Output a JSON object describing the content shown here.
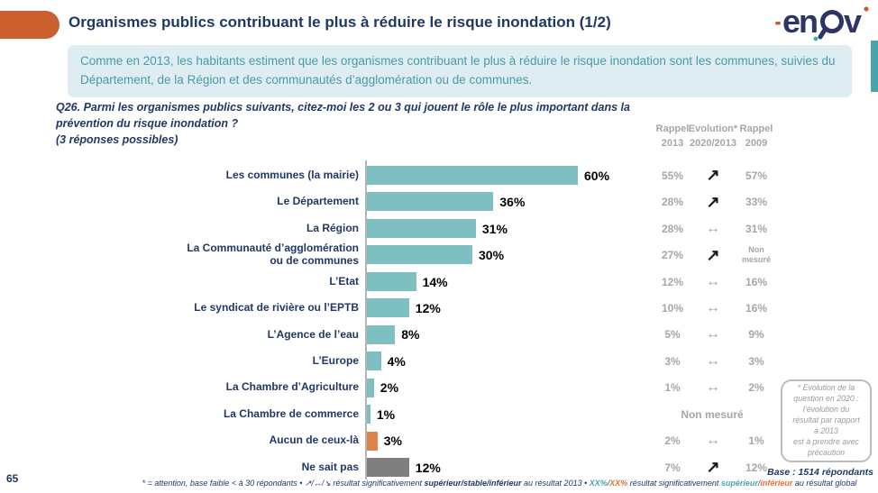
{
  "page_number": "65",
  "header": {
    "title": "Organismes publics contribuant le plus à réduire le risque inondation (1/2)",
    "logo_name": "enov"
  },
  "summary": {
    "text": "Comme en 2013, les habitants estiment que les organismes contribuant le plus à réduire le risque inondation sont les communes, suivies du Département, de la Région et des communautés d’agglomération ou de communes."
  },
  "question": {
    "line1": "Q26. Parmi les organismes publics suivants, citez-moi les 2 ou 3 qui jouent le rôle le plus important dans la prévention du risque inondation ?",
    "line2": "(3 réponses possibles)"
  },
  "columns": [
    {
      "line1": "Rappel",
      "line2": "2013"
    },
    {
      "line1": "Evolution*",
      "line2": "2020/2013"
    },
    {
      "line1": "Rappel",
      "line2": "2009"
    }
  ],
  "evolution_glyphs": {
    "up": "↗",
    "stable": "↔"
  },
  "chart_data": {
    "type": "bar",
    "orientation": "horizontal",
    "value_suffix": "%",
    "xlim": [
      0,
      62
    ],
    "bar_colors": {
      "teal": "#7EC0C2",
      "orange": "#DF8348",
      "gray": "#7F7F7F"
    },
    "rows": [
      {
        "label": "Les communes (la mairie)",
        "value": 60,
        "display": "60%",
        "color": "teal",
        "rappel_2013": "55%",
        "evolution_2020_2013": "up",
        "rappel_2009": "57%"
      },
      {
        "label": "Le Département",
        "value": 36,
        "display": "36%",
        "color": "teal",
        "rappel_2013": "28%",
        "evolution_2020_2013": "up",
        "rappel_2009": "33%"
      },
      {
        "label": "La Région",
        "value": 31,
        "display": "31%",
        "color": "teal",
        "rappel_2013": "28%",
        "evolution_2020_2013": "stable",
        "rappel_2009": "31%"
      },
      {
        "label": "La Communauté d’agglomération\nou de communes",
        "value": 30,
        "display": "30%",
        "color": "teal",
        "rappel_2013": "27%",
        "evolution_2020_2013": "up",
        "rappel_2009": "Non\nmesuré"
      },
      {
        "label": "L’Etat",
        "value": 14,
        "display": "14%",
        "color": "teal",
        "rappel_2013": "12%",
        "evolution_2020_2013": "stable",
        "rappel_2009": "16%"
      },
      {
        "label": "Le syndicat de rivière ou l’EPTB",
        "value": 12,
        "display": "12%",
        "color": "teal",
        "rappel_2013": "10%",
        "evolution_2020_2013": "stable",
        "rappel_2009": "16%"
      },
      {
        "label": "L’Agence de l’eau",
        "value": 8,
        "display": "8%",
        "color": "teal",
        "rappel_2013": "5%",
        "evolution_2020_2013": "stable",
        "rappel_2009": "9%"
      },
      {
        "label": "L’Europe",
        "value": 4,
        "display": "4%",
        "color": "teal",
        "rappel_2013": "3%",
        "evolution_2020_2013": "stable",
        "rappel_2009": "3%"
      },
      {
        "label": "La Chambre d’Agriculture",
        "value": 2,
        "display": "2%",
        "color": "teal",
        "rappel_2013": "1%",
        "evolution_2020_2013": "stable",
        "rappel_2009": "2%"
      },
      {
        "label": "La Chambre de commerce",
        "value": 1,
        "display": "1%",
        "color": "teal",
        "span_note": "Non mesuré"
      },
      {
        "label": "Aucun de ceux-là",
        "value": 3,
        "display": "3%",
        "color": "orange",
        "rappel_2013": "2%",
        "evolution_2020_2013": "stable",
        "rappel_2009": "1%"
      },
      {
        "label": "Ne sait pas",
        "value": 12,
        "display": "12%",
        "color": "gray",
        "rappel_2013": "7%",
        "evolution_2020_2013": "up",
        "rappel_2009": "12%"
      }
    ]
  },
  "note_box": {
    "lines": [
      "* Evolution de la",
      "question en 2020 :",
      "l’évolution du",
      "résultat par rapport",
      "à 2013",
      "est à prendre avec",
      "précaution"
    ]
  },
  "base_text": "Base : 1514 répondants",
  "footnote": {
    "segments": [
      {
        "text": "* = attention, base faible < à 30 répondants • ↗/↔/↘  résultat significativement ",
        "style": "plain"
      },
      {
        "text": "supérieur/stable/inférieur",
        "style": "bold"
      },
      {
        "text": " au résultat 2013 • ",
        "style": "plain"
      },
      {
        "text": "XX%",
        "style": "teal"
      },
      {
        "text": "/",
        "style": "plain"
      },
      {
        "text": "XX%",
        "style": "orange"
      },
      {
        "text": " résultat significativement ",
        "style": "plain"
      },
      {
        "text": "supérieur",
        "style": "teal"
      },
      {
        "text": "/",
        "style": "plain"
      },
      {
        "text": "inférieur",
        "style": "orange"
      },
      {
        "text": " au résultat global",
        "style": "plain"
      }
    ]
  },
  "accent_colors": {
    "navy": "#1F3864",
    "summary_bg": "#DDEDF1",
    "summary_text": "#4A9BA9",
    "orange_accent": "#CC5F2E",
    "teal_accent": "#4AA3AD",
    "gray_text": "#A6A6A6"
  }
}
